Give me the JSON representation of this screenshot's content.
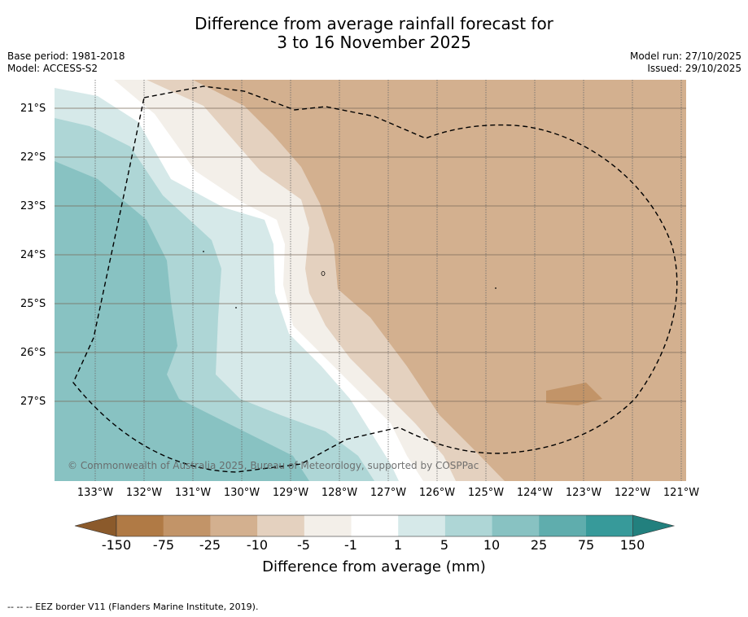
{
  "header": {
    "title_line1": "Difference from average rainfall forecast for",
    "title_line2": "3 to 16 November 2025",
    "base_period": "Base period: 1981-2018",
    "model": "Model: ACCESS-S2",
    "model_run": "Model run: 27/10/2025",
    "issued": "Issued: 29/10/2025"
  },
  "map": {
    "lat_labels": [
      "21°S",
      "22°S",
      "23°S",
      "24°S",
      "25°S",
      "26°S",
      "27°S"
    ],
    "lon_labels": [
      "133°W",
      "132°W",
      "131°W",
      "130°W",
      "129°W",
      "128°W",
      "127°W",
      "126°W",
      "125°W",
      "124°W",
      "123°W",
      "122°W",
      "121°W"
    ],
    "copyright": "© Commonwealth of Australia 2025, Bureau of Meteorology, supported by COSPPac",
    "eez_border": "EEZ border"
  },
  "colorbar": {
    "colors": [
      "#8b5a2b",
      "#b07a45",
      "#c29468",
      "#d3b08f",
      "#e4d1bf",
      "#f3efe9",
      "#ffffff",
      "#d6e9e9",
      "#aed6d6",
      "#88c2c2",
      "#5fadad",
      "#379a9a",
      "#22807e"
    ],
    "labels": [
      "-150",
      "-75",
      "-25",
      "-10",
      "-5",
      "-1",
      "1",
      "5",
      "10",
      "25",
      "75",
      "150"
    ],
    "title": "Difference from average (mm)"
  },
  "footer": {
    "note": "--  --  -- EEZ border V11 (Flanders Marine Institute, 2019)."
  }
}
